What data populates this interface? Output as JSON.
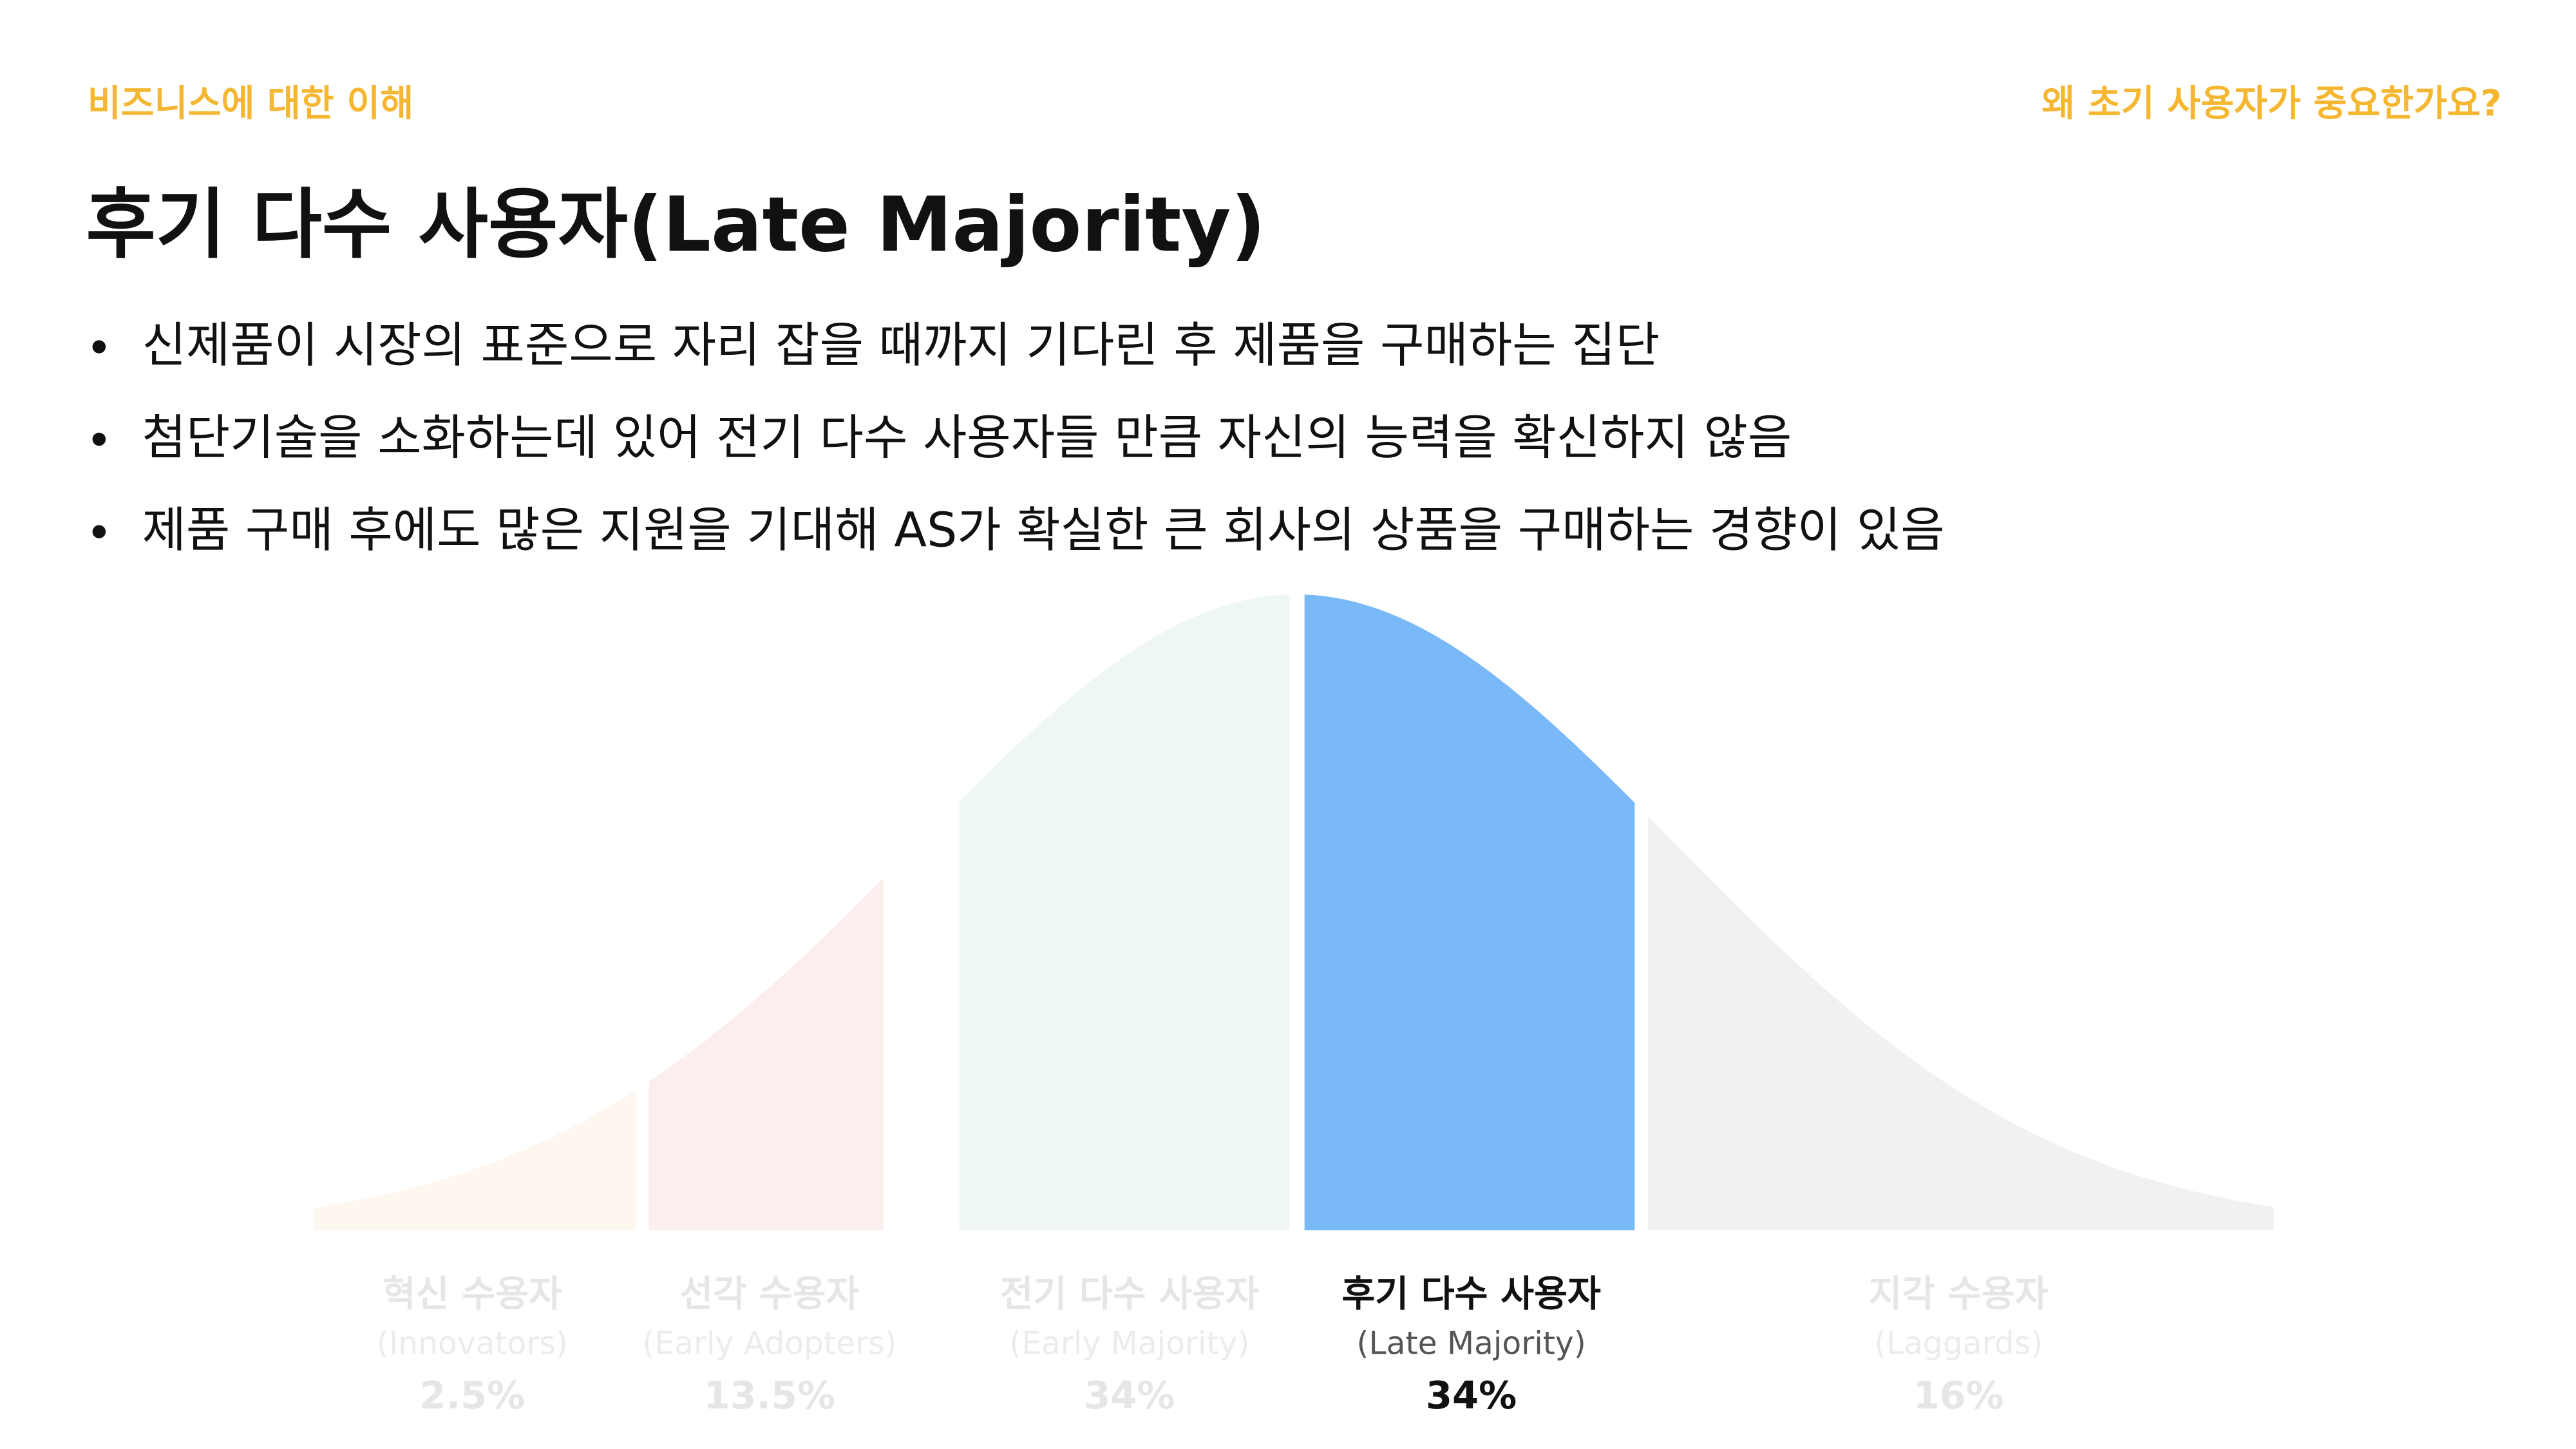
{
  "header": {
    "section": "비즈니스에 대한 이해",
    "topic": "왜 초기 사용자가 중요한가요?"
  },
  "title": "후기 다수 사용자(Late Majority)",
  "bullets": [
    "신제품이 시장의 표준으로 자리 잡을 때까지 기다린 후 제품을 구매하는 집단",
    "첨단기술을 소화하는데 있어 전기 다수 사용자들 만큼 자신의 능력을 확신하지 않음",
    "제품 구매 후에도 많은 지원을 기대해 AS가 확실한 큰 회사의 상품을 구매하는 경향이 있음"
  ],
  "segments": [
    {
      "label": "혁신 수용자",
      "sublabel": "(Innovators)",
      "share": "2.5%",
      "color": "#fdf7f0",
      "highlight": false
    },
    {
      "label": "선각 수용자",
      "sublabel": "(Early Adopters)",
      "share": "13.5%",
      "color": "#fbeeec",
      "highlight": false
    },
    {
      "label": "전기 다수 사용자",
      "sublabel": "(Early Majority)",
      "share": "34%",
      "color": "#eef7f1",
      "highlight": false
    },
    {
      "label": "후기 다수 사용자",
      "sublabel": "(Late Majority)",
      "share": "34%",
      "color": "#7ab9f8",
      "highlight": true
    },
    {
      "label": "지각 수용자",
      "sublabel": "(Laggards)",
      "share": "16%",
      "color": "#f1f1f1",
      "highlight": false
    }
  ]
}
